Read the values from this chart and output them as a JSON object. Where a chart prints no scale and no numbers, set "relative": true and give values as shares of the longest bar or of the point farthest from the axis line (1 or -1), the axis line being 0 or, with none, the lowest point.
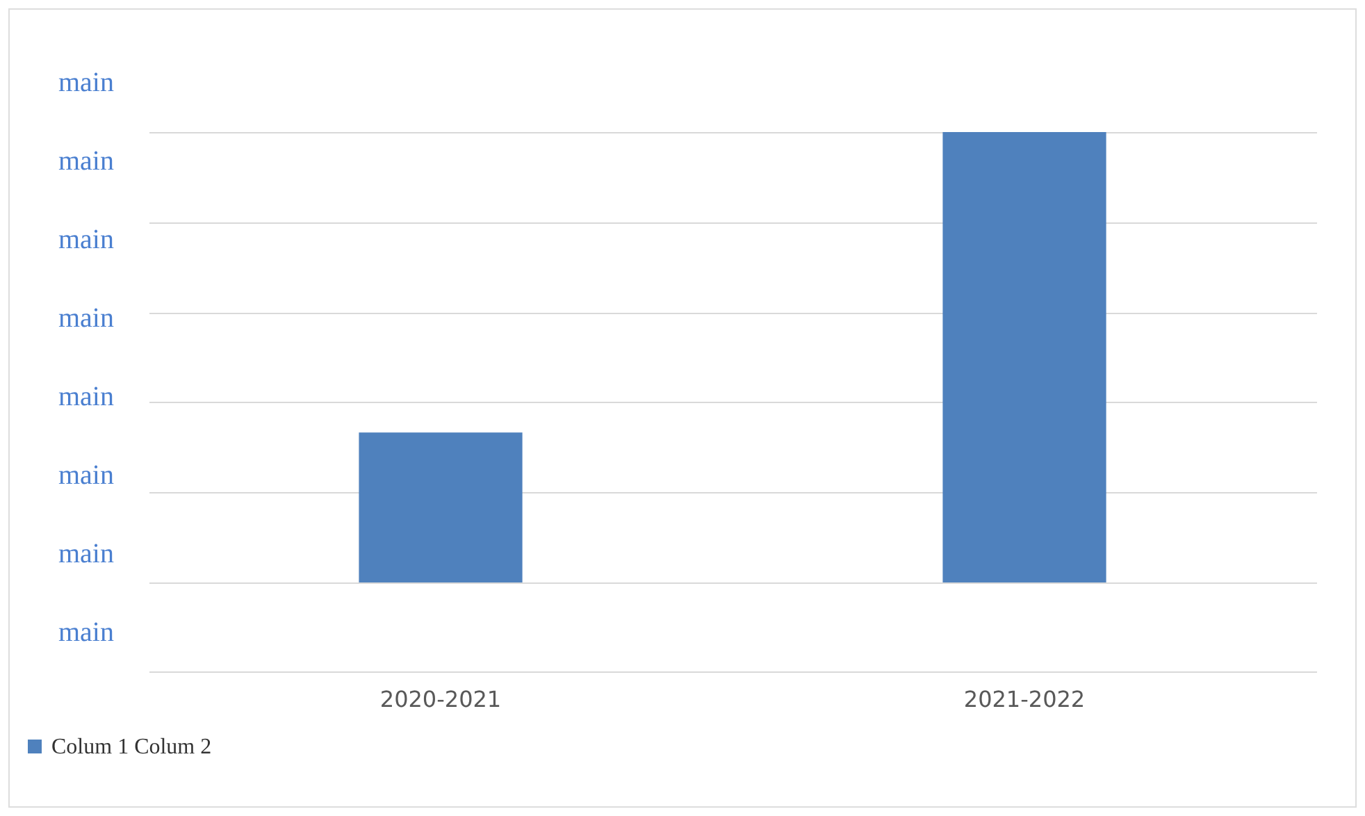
{
  "chart_data": {
    "type": "bar",
    "categories": [
      "2020-2021",
      "2021-2022"
    ],
    "series": [
      {
        "name": "Colum 1 Colum 2",
        "color": "#4f81bd",
        "values": [
          0.333,
          1
        ]
      }
    ],
    "relative": true,
    "annotations": [
      "main",
      "main",
      "main",
      "main",
      "main",
      "main",
      "main",
      "main"
    ],
    "grid": "y",
    "legend": "bottom"
  }
}
